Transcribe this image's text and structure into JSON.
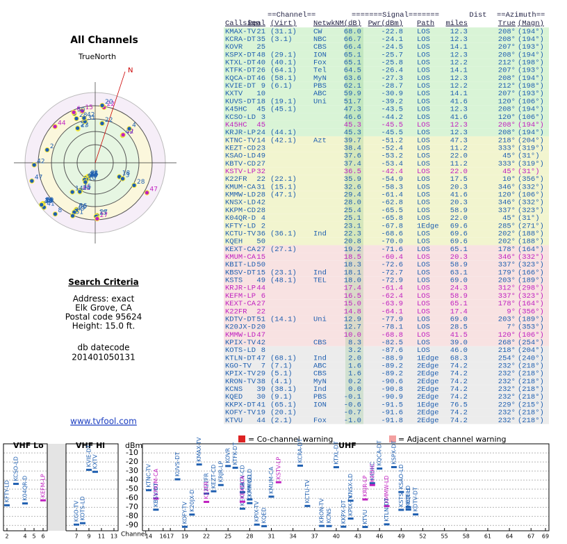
{
  "left": {
    "title": "All Channels",
    "north_label": "TrueNorth",
    "north_mark": "N",
    "search_title": "Search Criteria",
    "search_lines": [
      "Address: exact",
      "Elk Grove, CA",
      "Postal code 95624",
      "Height: 15.0 ft."
    ],
    "db_title": "db datecode",
    "db_code": "201401050131",
    "link": "www.tvfool.com"
  },
  "table": {
    "group_headers": [
      "==Channel==",
      "=======Signal=======",
      "Dist",
      "==Azimuth=="
    ],
    "columns": [
      "Callsign",
      "Real",
      "(Virt)",
      "Netwk",
      "NM(dB)",
      "Pwr(dBm)",
      "Path",
      "miles",
      "True",
      "(Magn)"
    ],
    "rows": [
      [
        "KMAX-TV",
        "21",
        "(31.1)",
        "CW",
        "68.0",
        "-22.8",
        "LOS",
        "12.3",
        "208°",
        "(194°)"
      ],
      [
        "KCRA-DT",
        "35",
        "(3.1)",
        "NBC",
        "66.7",
        "-24.1",
        "LOS",
        "12.3",
        "208°",
        "(194°)"
      ],
      [
        "KOVR",
        "25",
        null,
        "CBS",
        "66.4",
        "-24.5",
        "LOS",
        "14.1",
        "207°",
        "(193°)"
      ],
      [
        "KSPX-DT",
        "48",
        "(29.1)",
        "ION",
        "65.1",
        "-25.7",
        "LOS",
        "12.3",
        "208°",
        "(194°)"
      ],
      [
        "KTXL-DT",
        "40",
        "(40.1)",
        "Fox",
        "65.1",
        "-25.8",
        "LOS",
        "12.2",
        "212°",
        "(198°)"
      ],
      [
        "KTFK-DT",
        "26",
        "(64.1)",
        "Tel",
        "64.5",
        "-26.4",
        "LOS",
        "14.1",
        "207°",
        "(193°)"
      ],
      [
        "KQCA-DT",
        "46",
        "(58.1)",
        "MyN",
        "63.6",
        "-27.3",
        "LOS",
        "12.3",
        "208°",
        "(194°)"
      ],
      [
        "KVIE-DT",
        "9",
        "(6.1)",
        "PBS",
        "62.1",
        "-28.7",
        "LOS",
        "12.2",
        "212°",
        "(198°)"
      ],
      [
        "KXTV",
        "10",
        null,
        "ABC",
        "59.9",
        "-30.9",
        "LOS",
        "14.1",
        "207°",
        "(193°)"
      ],
      [
        "KUVS-DT",
        "18",
        "(19.1)",
        "Uni",
        "51.7",
        "-39.2",
        "LOS",
        "41.6",
        "120°",
        "(106°)"
      ],
      [
        "K45HC",
        "45",
        "(45.1)",
        null,
        "47.3",
        "-43.5",
        "LOS",
        "12.3",
        "208°",
        "(194°)"
      ],
      [
        "KCSO-LD",
        "3",
        null,
        null,
        "46.6",
        "-44.2",
        "LOS",
        "41.6",
        "120°",
        "(106°)"
      ],
      [
        "K45HC",
        "45",
        null,
        null,
        "45.3",
        "-45.5",
        "LOS",
        "12.3",
        "208°",
        "(194°)"
      ],
      [
        "KRJR-LP",
        "24",
        "(44.1)",
        null,
        "45.3",
        "-45.5",
        "LOS",
        "12.3",
        "208°",
        "(194°)"
      ],
      [
        "KTNC-TV",
        "14",
        "(42.1)",
        "Azt",
        "39.7",
        "-51.2",
        "LOS",
        "47.3",
        "218°",
        "(204°)"
      ],
      [
        "KEZT-CD",
        "23",
        null,
        null,
        "38.4",
        "-52.4",
        "LOS",
        "11.2",
        "333°",
        "(319°)"
      ],
      [
        "KSAO-LD",
        "49",
        null,
        null,
        "37.6",
        "-53.2",
        "LOS",
        "22.0",
        "45°",
        "(31°)"
      ],
      [
        "KBTV-CD",
        "27",
        null,
        null,
        "37.4",
        "-53.4",
        "LOS",
        "11.2",
        "333°",
        "(319°)"
      ],
      [
        "KSTV-LP",
        "32",
        null,
        null,
        "36.5",
        "-42.4",
        "LOS",
        "22.0",
        "45°",
        "(31°)"
      ],
      [
        "K22FR",
        "22",
        "(22.1)",
        null,
        "35.9",
        "-54.9",
        "LOS",
        "17.5",
        "10°",
        "(356°)"
      ],
      [
        "KMUM-CA",
        "31",
        "(15.1)",
        null,
        "32.6",
        "-58.3",
        "LOS",
        "20.3",
        "346°",
        "(332°)"
      ],
      [
        "KMMW-LD",
        "28",
        "(47.1)",
        null,
        "29.4",
        "-61.4",
        "LOS",
        "41.6",
        "120°",
        "(106°)"
      ],
      [
        "KNSX-LD",
        "42",
        null,
        null,
        "28.0",
        "-62.8",
        "LOS",
        "20.3",
        "346°",
        "(332°)"
      ],
      [
        "KKPM-CD",
        "28",
        null,
        null,
        "25.4",
        "-65.5",
        "LOS",
        "58.9",
        "337°",
        "(323°)"
      ],
      [
        "K04QR-D",
        "4",
        null,
        null,
        "25.1",
        "-65.8",
        "LOS",
        "22.0",
        "45°",
        "(31°)"
      ],
      [
        "KFTY-LD",
        "2",
        null,
        null,
        "23.1",
        "-67.8",
        "1Edge",
        "69.6",
        "285°",
        "(271°)"
      ],
      [
        "KCTU-TV",
        "36",
        "(36.1)",
        "Ind",
        "22.3",
        "-68.6",
        "LOS",
        "69.6",
        "202°",
        "(188°)"
      ],
      [
        "KQEH",
        "50",
        null,
        null,
        "20.8",
        "-70.0",
        "LOS",
        "69.6",
        "202°",
        "(188°)"
      ],
      [
        "KEXT-CA",
        "27",
        "(27.1)",
        null,
        "19.2",
        "-71.6",
        "LOS",
        "65.1",
        "178°",
        "(164°)"
      ],
      [
        "KMUM-CA",
        "15",
        null,
        null,
        "18.5",
        "-60.4",
        "LOS",
        "20.3",
        "346°",
        "(332°)"
      ],
      [
        "KBIT-LD",
        "50",
        null,
        null,
        "18.3",
        "-72.6",
        "LOS",
        "58.9",
        "337°",
        "(323°)"
      ],
      [
        "KBSV-DT",
        "15",
        "(23.1)",
        "Ind",
        "18.1",
        "-72.7",
        "LOS",
        "63.1",
        "179°",
        "(166°)"
      ],
      [
        "KSTS",
        "49",
        "(48.1)",
        "TEL",
        "18.0",
        "-72.9",
        "LOS",
        "69.0",
        "203°",
        "(189°)"
      ],
      [
        "KRJR-LP",
        "44",
        null,
        null,
        "17.4",
        "-61.4",
        "LOS",
        "24.3",
        "312°",
        "(298°)"
      ],
      [
        "KEFM-LP",
        "6",
        null,
        null,
        "16.5",
        "-62.4",
        "LOS",
        "58.9",
        "337°",
        "(323°)"
      ],
      [
        "KEXT-CA",
        "27",
        null,
        null,
        "15.0",
        "-63.9",
        "LOS",
        "65.1",
        "178°",
        "(164°)"
      ],
      [
        "K22FR",
        "22",
        null,
        null,
        "14.8",
        "-64.1",
        "LOS",
        "17.4",
        "9°",
        "(356°)"
      ],
      [
        "KDTV-DT",
        "51",
        "(14.1)",
        "Uni",
        "12.9",
        "-77.9",
        "LOS",
        "69.0",
        "203°",
        "(189°)"
      ],
      [
        "K20JX-D",
        "20",
        null,
        null,
        "12.7",
        "-78.1",
        "LOS",
        "28.5",
        "7°",
        "(353°)"
      ],
      [
        "KMMW-LD",
        "47",
        null,
        null,
        "10.0",
        "-68.8",
        "LOS",
        "41.5",
        "120°",
        "(106°)"
      ],
      [
        "KPIX-TV",
        "42",
        null,
        "CBS",
        "8.3",
        "-82.5",
        "LOS",
        "39.0",
        "268°",
        "(254°)"
      ],
      [
        "KOTS-LD",
        "8",
        null,
        null,
        "3.2",
        "-87.6",
        "LOS",
        "46.0",
        "218°",
        "(204°)"
      ],
      [
        "KTLN-DT",
        "47",
        "(68.1)",
        "Ind",
        "2.0",
        "-88.9",
        "1Edge",
        "68.3",
        "254°",
        "(240°)"
      ],
      [
        "KGO-TV",
        "7",
        "(7.1)",
        "ABC",
        "1.6",
        "-89.2",
        "2Edge",
        "74.2",
        "232°",
        "(218°)"
      ],
      [
        "KPIX-TV",
        "29",
        "(5.1)",
        "CBS",
        "1.6",
        "-89.2",
        "2Edge",
        "74.2",
        "232°",
        "(218°)"
      ],
      [
        "KRON-TV",
        "38",
        "(4.1)",
        "MyN",
        "0.2",
        "-90.6",
        "2Edge",
        "74.2",
        "232°",
        "(218°)"
      ],
      [
        "KCNS",
        "39",
        "(38.1)",
        "Ind",
        "0.0",
        "-90.8",
        "2Edge",
        "74.2",
        "232°",
        "(218°)"
      ],
      [
        "KQED",
        "30",
        "(9.1)",
        "PBS",
        "-0.1",
        "-90.9",
        "2Edge",
        "74.2",
        "232°",
        "(218°)"
      ],
      [
        "KKPX-DT",
        "41",
        "(65.1)",
        "ION",
        "-0.6",
        "-91.5",
        "1Edge",
        "76.5",
        "229°",
        "(215°)"
      ],
      [
        "KOFY-TV",
        "19",
        "(20.1)",
        null,
        "-0.7",
        "-91.6",
        "2Edge",
        "74.2",
        "232°",
        "(218°)"
      ],
      [
        "KTVU",
        "44",
        "(2.1)",
        "Fox",
        "-1.0",
        "-91.8",
        "2Edge",
        "74.2",
        "232°",
        "(218°)"
      ]
    ],
    "colors": [
      "#1f5fb0",
      "#1f5fb0",
      "#1f5fb0",
      "#1f5fb0",
      "#1f5fb0",
      "#1f5fb0",
      "#1f5fb0",
      "#1f5fb0",
      "#1f5fb0",
      "#1f5fb0",
      "#1f5fb0",
      "#1f5fb0",
      "#c020c0",
      "#1f5fb0",
      "#1f5fb0",
      "#1f5fb0",
      "#1f5fb0",
      "#1f5fb0",
      "#c020c0",
      "#1f5fb0",
      "#1f5fb0",
      "#1f5fb0",
      "#1f5fb0",
      "#1f5fb0",
      "#1f5fb0",
      "#1f5fb0",
      "#1f5fb0",
      "#1f5fb0",
      "#1f5fb0",
      "#c020c0",
      "#1f5fb0",
      "#1f5fb0",
      "#1f5fb0",
      "#c020c0",
      "#c020c0",
      "#c020c0",
      "#c020c0",
      "#1f5fb0",
      "#1f5fb0",
      "#c020c0",
      "#1f5fb0",
      "#1f5fb0",
      "#1f5fb0",
      "#1f5fb0",
      "#1f5fb0",
      "#1f5fb0",
      "#1f5fb0",
      "#1f5fb0",
      "#1f5fb0",
      "#1f5fb0",
      "#1f5fb0"
    ]
  },
  "spectrum": {
    "y_label": "dBm",
    "x_label": "Channel",
    "ylim": [
      -96,
      0
    ],
    "yticks": [
      -10,
      -20,
      -30,
      -40,
      -50,
      -60,
      -70,
      -80,
      -90
    ],
    "sections": [
      {
        "label": "VHF Lo",
        "xlim": [
          2,
          6
        ],
        "xticks": [
          2,
          4,
          5,
          6
        ]
      },
      {
        "label": "VHF Hi",
        "xlim": [
          7,
          13
        ],
        "xticks": [
          7,
          9,
          11,
          13
        ]
      },
      {
        "label": "UHF",
        "xlim": [
          14,
          69
        ],
        "xticks": [
          14,
          16,
          17,
          19,
          22,
          25,
          28,
          31,
          34,
          37,
          40,
          43,
          46,
          49,
          52,
          55,
          58,
          61,
          64,
          67,
          69
        ]
      }
    ],
    "legend": [
      "= Co-channel warning",
      "= Adjacent channel warning"
    ]
  }
}
